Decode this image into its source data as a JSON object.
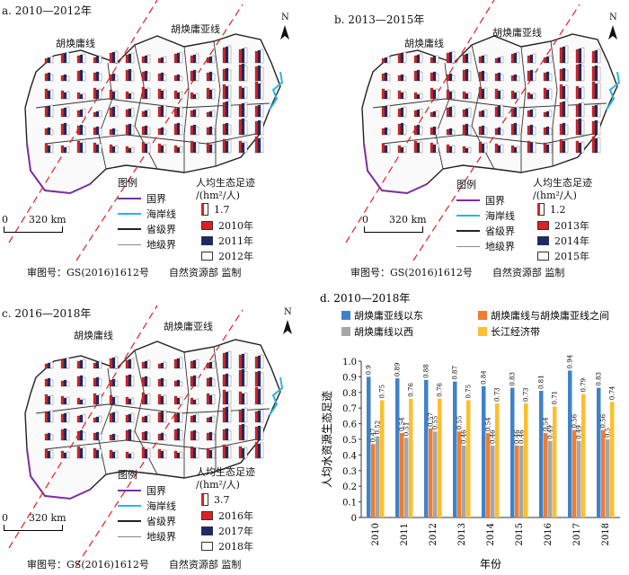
{
  "maps": [
    {
      "title": "a. 2010—2012年",
      "hu_line_label": "胡焕庸线",
      "hu_sub_line_label": "胡焕庸亚线",
      "legend_title": "图例",
      "legend_items": [
        "国界",
        "海岸线",
        "省级界",
        "地级界"
      ],
      "value_title": "人均生态足迹",
      "value_unit": "/(hm²/人)",
      "value_ref": "1.7",
      "years": [
        "2010年",
        "2011年",
        "2012年"
      ],
      "scale_zero": "0",
      "scale_text": "320 km",
      "approval": "审图号：GS(2016)1612号　　自然资源部 监制",
      "north": "N"
    },
    {
      "title": "b. 2013—2015年",
      "hu_line_label": "胡焕庸线",
      "hu_sub_line_label": "胡焕庸亚线",
      "legend_title": "图例",
      "legend_items": [
        "国界",
        "海岸线",
        "省级界",
        "地级界"
      ],
      "value_title": "人均生态足迹",
      "value_unit": "/(hm²/人)",
      "value_ref": "1.2",
      "years": [
        "2013年",
        "2014年",
        "2015年"
      ],
      "scale_zero": "0",
      "scale_text": "320 km",
      "approval": "审图号：GS(2016)1612号　　自然资源部 监制",
      "north": "N"
    },
    {
      "title": "c. 2016—2018年",
      "hu_line_label": "胡焕庸线",
      "hu_sub_line_label": "胡焕庸亚线",
      "legend_title": "图例",
      "legend_items": [
        "国界",
        "海岸线",
        "省级界",
        "地级界"
      ],
      "value_title": "人均生态足迹",
      "value_unit": "/(hm²/人)",
      "value_ref": "3.7",
      "years": [
        "2016年",
        "2017年",
        "2018年"
      ],
      "scale_zero": "0",
      "scale_text": "320 km",
      "approval": "审图号：GS(2016)1612号　　自然资源部 监制",
      "north": "N"
    }
  ],
  "legend_colors": {
    "national": "#7b2fa0",
    "coast": "#2cb5e0",
    "province": "#222222",
    "prefecture": "#888888",
    "year1": "#e02020",
    "year2": "#1a2a6c",
    "year3": "#ffffff",
    "hu_line": "#e02020"
  },
  "chart_data": {
    "type": "bar",
    "title": "d. 2010—2018年",
    "ylabel": "人均水资源生态足迹",
    "xlabel": "年份",
    "ylim": [
      0,
      1.0
    ],
    "yticks": [
      "0",
      "0.1",
      "0.2",
      "0.3",
      "0.4",
      "0.5",
      "0.6",
      "0.7",
      "0.8",
      "0.9",
      "1.0"
    ],
    "categories": [
      "2010",
      "2011",
      "2012",
      "2013",
      "2014",
      "2015",
      "2016",
      "2017",
      "2018"
    ],
    "series": [
      {
        "name": "胡焕庸亚线以东",
        "color": "#3f82c8",
        "values": [
          0.9,
          0.89,
          0.88,
          0.87,
          0.84,
          0.83,
          0.81,
          0.94,
          0.83
        ]
      },
      {
        "name": "胡焕庸线与胡焕庸亚线之间",
        "color": "#ee7d31",
        "values": [
          0.47,
          0.54,
          0.57,
          0.55,
          0.54,
          0.46,
          0.54,
          0.56,
          0.56
        ]
      },
      {
        "name": "胡焕庸线以西",
        "color": "#a6a6a6",
        "values": [
          0.52,
          0.51,
          0.55,
          0.46,
          0.46,
          0.46,
          0.49,
          0.49,
          0.5
        ]
      },
      {
        "name": "长江经济带",
        "color": "#fdbf2d",
        "values": [
          0.75,
          0.76,
          0.76,
          0.75,
          0.73,
          0.73,
          0.71,
          0.79,
          0.74
        ]
      }
    ],
    "value_labels": [
      [
        "0.9",
        "0.89",
        "0.88",
        "0.87",
        "0.84",
        "0.83",
        "0.81",
        "0.94",
        "0.83"
      ],
      [
        "0.47",
        "0.54",
        "0.57",
        "0.55",
        "0.54",
        "0.46",
        "0.54",
        "0.56",
        "0.56"
      ],
      [
        "0.52",
        "0.51",
        "0.55",
        "0.46",
        "0.46",
        "0.46",
        "0.49",
        "0.49",
        "0.5"
      ],
      [
        "0.75",
        "0.76",
        "0.76",
        "0.75",
        "0.73",
        "0.73",
        "0.71",
        "0.79",
        "0.74"
      ]
    ]
  }
}
